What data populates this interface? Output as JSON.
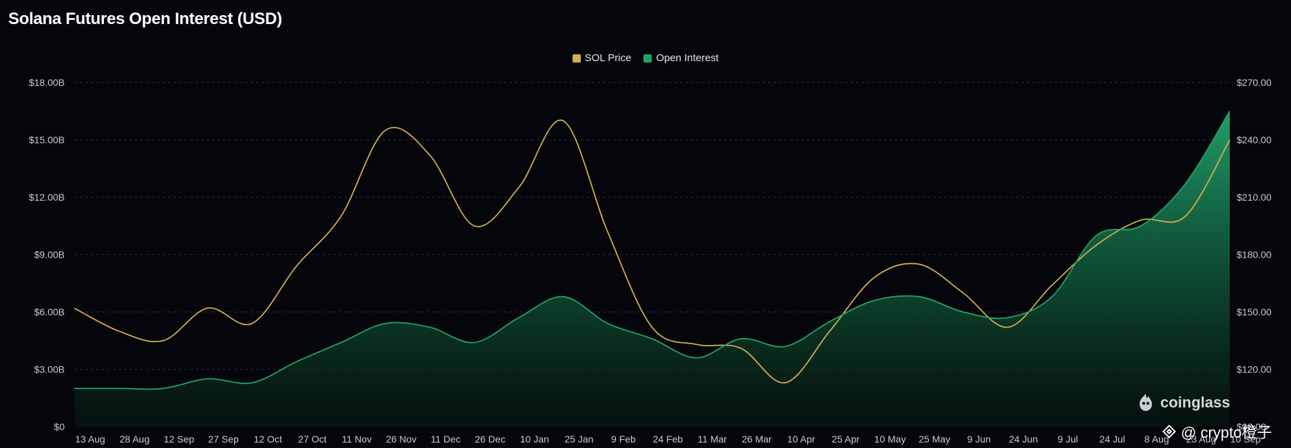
{
  "chart_data": {
    "type": "line",
    "title": "Solana Futures Open Interest (USD)",
    "legend_position": "top-center",
    "grid": true,
    "categories": [
      "13 Aug",
      "28 Aug",
      "12 Sep",
      "27 Sep",
      "12 Oct",
      "27 Oct",
      "11 Nov",
      "26 Nov",
      "11 Dec",
      "26 Dec",
      "10 Jan",
      "25 Jan",
      "9 Feb",
      "24 Feb",
      "11 Mar",
      "26 Mar",
      "10 Apr",
      "25 Apr",
      "10 May",
      "25 May",
      "9 Jun",
      "24 Jun",
      "9 Jul",
      "24 Jul",
      "8 Aug",
      "23 Aug",
      "10 Sep"
    ],
    "y_left": {
      "ylim": [
        0,
        18
      ],
      "ticks": [
        "$0",
        "$3.00B",
        "$6.00B",
        "$9.00B",
        "$12.00B",
        "$15.00B",
        "$18.00B"
      ]
    },
    "y_right": {
      "ylim": [
        90,
        270
      ],
      "ticks": [
        "$90.00",
        "$120.00",
        "$150.00",
        "$180.00",
        "$210.00",
        "$240.00",
        "$270.00"
      ]
    },
    "series": [
      {
        "name": "SOL Price",
        "axis": "right",
        "color": "#d2ad4b",
        "values": [
          152,
          140,
          135,
          152,
          144,
          174,
          200,
          245,
          232,
          195,
          215,
          250,
          192,
          142,
          133,
          131,
          113,
          140,
          168,
          175,
          160,
          142,
          164,
          185,
          198,
          200,
          240
        ]
      },
      {
        "name": "Open Interest",
        "axis": "left",
        "color": "#1fa46a",
        "values": [
          2.0,
          2.0,
          2.0,
          2.5,
          2.3,
          3.4,
          4.4,
          5.4,
          5.2,
          4.4,
          5.7,
          6.8,
          5.4,
          4.6,
          3.6,
          4.6,
          4.2,
          5.5,
          6.6,
          6.8,
          6.0,
          5.7,
          6.8,
          10.0,
          10.5,
          12.7,
          16.5
        ]
      }
    ]
  },
  "brand": {
    "logo_text": "coinglass",
    "logo_icon": "flame-logo-icon"
  },
  "watermark": {
    "text": "@ crypto橙子",
    "icon": "binance-diamond-icon"
  }
}
